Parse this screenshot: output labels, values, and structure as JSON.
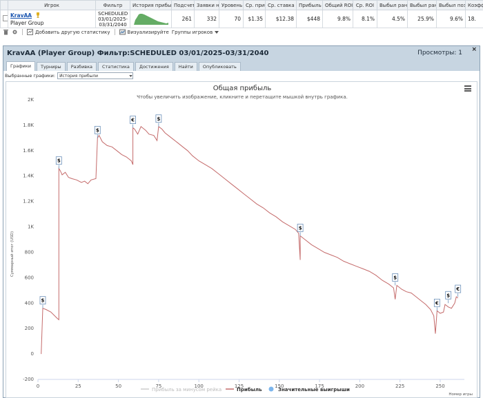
{
  "table": {
    "headers": [
      "Игрок",
      "Фильтр",
      "История прибыли",
      "Подсчет",
      "Заявки н",
      "Уровень",
      "Ср. прибыль",
      "Ср. ставка",
      "Прибыль",
      "Общий ROI",
      "Ср. ROI",
      "Выбыл ран",
      "Выбыл рано/",
      "Выбыл поздно",
      "Коэфф"
    ],
    "row": {
      "player": "KravAA",
      "group": "Player Group",
      "filter_lines": [
        "SCHEDULED",
        "03/01/2025-",
        "03/31/2040"
      ],
      "count": "261",
      "entries": "332",
      "level": "70",
      "avg_profit": "$1.35",
      "avg_stake": "$12.38",
      "profit": "$448",
      "total_roi": "9.8%",
      "avg_roi": "8.1%",
      "out_early": "4.5%",
      "out_early2": "25.9%",
      "out_late": "9.6%",
      "coef": "18."
    }
  },
  "toolbar": {
    "add_stats": "Добавить другую статистику",
    "visualize": "Визуализируйте",
    "player_groups": "Группы игроков"
  },
  "panel": {
    "title": "KravAA (Player Group) Фильтр:SCHEDULED 03/01/2025-03/31/2040",
    "views": "Просмотры: 1",
    "close": "×",
    "tabs": [
      "Графики",
      "Турниры",
      "Разбивка",
      "Статистика",
      "Достижения",
      "Найти",
      "Опубликовать"
    ],
    "selected_label": "Выбранные графики:",
    "selected_value": "История прибыли"
  },
  "chart_data": {
    "type": "line",
    "title": "Общая прибыль",
    "subtitle": "Чтобы увеличить изображение, кликните и перетащите мышкой внутрь графика.",
    "ylabel": "Суммарный итог (USD)",
    "xlabel": "Номер игры",
    "ylim": [
      -200,
      2000
    ],
    "xlim": [
      0,
      265
    ],
    "yticks": [
      "-200",
      "0",
      "200",
      "400",
      "600",
      "800",
      "1K",
      "1.2K",
      "1.4K",
      "1.6K",
      "1.8K",
      "2K"
    ],
    "ytick_values": [
      -200,
      0,
      200,
      400,
      600,
      800,
      1000,
      1200,
      1400,
      1600,
      1800,
      2000
    ],
    "xticks": [
      0,
      25,
      50,
      75,
      100,
      125,
      150,
      175,
      200,
      225,
      250
    ],
    "series": [
      {
        "name": "Прибыль",
        "color": "#c46a6a",
        "points": [
          [
            2,
            0
          ],
          [
            3,
            360
          ],
          [
            5,
            350
          ],
          [
            8,
            330
          ],
          [
            12,
            280
          ],
          [
            13,
            270
          ],
          [
            13,
            1460
          ],
          [
            14,
            1440
          ],
          [
            15,
            1410
          ],
          [
            17,
            1430
          ],
          [
            19,
            1390
          ],
          [
            21,
            1380
          ],
          [
            24,
            1370
          ],
          [
            27,
            1350
          ],
          [
            29,
            1360
          ],
          [
            31,
            1340
          ],
          [
            33,
            1370
          ],
          [
            36,
            1380
          ],
          [
            37,
            1700
          ],
          [
            38,
            1720
          ],
          [
            40,
            1670
          ],
          [
            43,
            1640
          ],
          [
            46,
            1630
          ],
          [
            49,
            1600
          ],
          [
            52,
            1570
          ],
          [
            55,
            1550
          ],
          [
            58,
            1520
          ],
          [
            59,
            1490
          ],
          [
            59,
            1780
          ],
          [
            60,
            1770
          ],
          [
            62,
            1730
          ],
          [
            64,
            1790
          ],
          [
            65,
            1780
          ],
          [
            67,
            1760
          ],
          [
            69,
            1730
          ],
          [
            72,
            1720
          ],
          [
            74,
            1680
          ],
          [
            75,
            1790
          ],
          [
            77,
            1770
          ],
          [
            79,
            1740
          ],
          [
            81,
            1720
          ],
          [
            84,
            1690
          ],
          [
            87,
            1660
          ],
          [
            90,
            1630
          ],
          [
            93,
            1600
          ],
          [
            96,
            1560
          ],
          [
            100,
            1520
          ],
          [
            104,
            1490
          ],
          [
            108,
            1460
          ],
          [
            112,
            1420
          ],
          [
            116,
            1380
          ],
          [
            120,
            1340
          ],
          [
            124,
            1300
          ],
          [
            128,
            1260
          ],
          [
            132,
            1220
          ],
          [
            136,
            1180
          ],
          [
            140,
            1150
          ],
          [
            144,
            1110
          ],
          [
            148,
            1080
          ],
          [
            152,
            1040
          ],
          [
            156,
            1010
          ],
          [
            160,
            980
          ],
          [
            162,
            950
          ],
          [
            163,
            740
          ],
          [
            163,
            930
          ],
          [
            166,
            900
          ],
          [
            170,
            860
          ],
          [
            174,
            830
          ],
          [
            178,
            800
          ],
          [
            182,
            780
          ],
          [
            186,
            760
          ],
          [
            190,
            730
          ],
          [
            194,
            710
          ],
          [
            198,
            690
          ],
          [
            202,
            670
          ],
          [
            206,
            650
          ],
          [
            210,
            620
          ],
          [
            214,
            580
          ],
          [
            218,
            550
          ],
          [
            221,
            520
          ],
          [
            222,
            430
          ],
          [
            223,
            540
          ],
          [
            226,
            510
          ],
          [
            229,
            490
          ],
          [
            232,
            480
          ],
          [
            235,
            450
          ],
          [
            238,
            420
          ],
          [
            241,
            390
          ],
          [
            244,
            350
          ],
          [
            246,
            300
          ],
          [
            247,
            160
          ],
          [
            248,
            340
          ],
          [
            250,
            320
          ],
          [
            252,
            330
          ],
          [
            253,
            390
          ],
          [
            255,
            370
          ],
          [
            257,
            360
          ],
          [
            259,
            400
          ],
          [
            260,
            450
          ],
          [
            261,
            440
          ]
        ]
      }
    ],
    "markers": [
      {
        "x": 3,
        "y": 360,
        "symbol": "$"
      },
      {
        "x": 13,
        "y": 1460,
        "symbol": "$"
      },
      {
        "x": 37,
        "y": 1700,
        "symbol": "$"
      },
      {
        "x": 59,
        "y": 1780,
        "symbol": "€"
      },
      {
        "x": 75,
        "y": 1790,
        "symbol": "$"
      },
      {
        "x": 163,
        "y": 930,
        "symbol": "$"
      },
      {
        "x": 222,
        "y": 540,
        "symbol": "$"
      },
      {
        "x": 248,
        "y": 340,
        "symbol": "€"
      },
      {
        "x": 255,
        "y": 400,
        "symbol": "$"
      },
      {
        "x": 261,
        "y": 450,
        "symbol": "€"
      }
    ],
    "legend": [
      {
        "name": "Прибыль за минусом рейка",
        "color": "#cccccc",
        "shape": "line"
      },
      {
        "name": "Прибыль",
        "color": "#c46a6a",
        "shape": "line"
      },
      {
        "name": "Значительные выигрыши",
        "color": "#7cb5ec",
        "shape": "circle"
      }
    ],
    "legend_position": "bottom",
    "grid": false
  }
}
